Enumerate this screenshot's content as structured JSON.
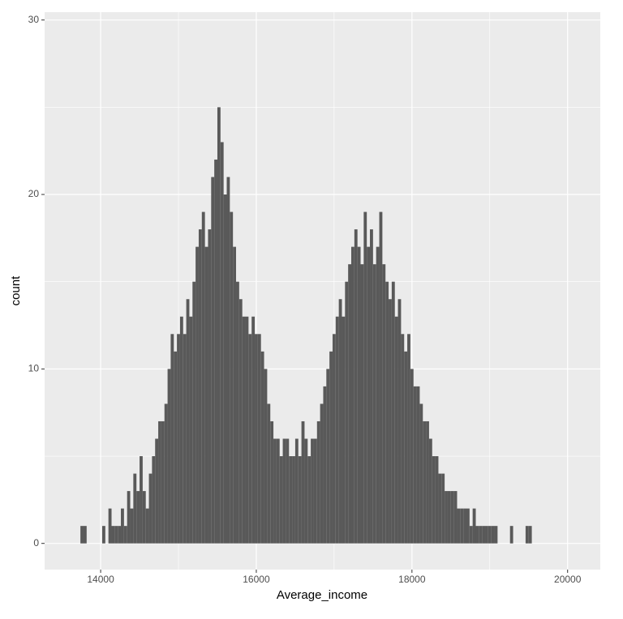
{
  "chart_data": {
    "type": "histogram",
    "x_label": "Average_income",
    "y_label": "count",
    "color": "#595959",
    "background": "#ebebeb",
    "grid": true,
    "bins": [
      13740,
      13780,
      13820,
      13860,
      13900,
      13940,
      13980,
      14020,
      14060,
      14100,
      14140,
      14180,
      14220,
      14260,
      14300,
      14340,
      14380,
      14420,
      14460,
      14500,
      14540,
      14580,
      14620,
      14660,
      14700,
      14740,
      14780,
      14820,
      14860,
      14900,
      14940,
      14980,
      15020,
      15060,
      15100,
      15140,
      15180,
      15220,
      15260,
      15300,
      15340,
      15380,
      15420,
      15460,
      15500,
      15540,
      15580,
      15620,
      15660,
      15700,
      15740,
      15780,
      15820,
      15860,
      15900,
      15940,
      15980,
      16020,
      16060,
      16100,
      16140,
      16180,
      16220,
      16260,
      16300,
      16340,
      16380,
      16420,
      16460,
      16500,
      16540,
      16580,
      16620,
      16660,
      16700,
      16740,
      16780,
      16820,
      16860,
      16900,
      16940,
      16980,
      17020,
      17060,
      17100,
      17140,
      17180,
      17220,
      17260,
      17300,
      17340,
      17380,
      17420,
      17460,
      17500,
      17540,
      17580,
      17620,
      17660,
      17700,
      17740,
      17780,
      17820,
      17860,
      17900,
      17940,
      17980,
      18020,
      18060,
      18100,
      18140,
      18180,
      18220,
      18260,
      18300,
      18340,
      18380,
      18420,
      18460,
      18500,
      18540,
      18580,
      18620,
      18660,
      18700,
      18740,
      18780,
      18820,
      18860,
      18900,
      18940,
      18980,
      19020,
      19060,
      19100,
      19140,
      19180,
      19220,
      19260,
      19300,
      19340,
      19380,
      19420,
      19460,
      19500,
      19540
    ],
    "values": [
      1,
      1,
      0,
      0,
      0,
      0,
      0,
      1,
      0,
      2,
      1,
      1,
      1,
      2,
      1,
      3,
      2,
      4,
      3,
      5,
      3,
      2,
      4,
      5,
      6,
      7,
      7,
      8,
      10,
      12,
      11,
      12,
      13,
      12,
      14,
      13,
      15,
      17,
      18,
      19,
      17,
      18,
      21,
      22,
      25,
      23,
      20,
      21,
      19,
      17,
      15,
      14,
      13,
      13,
      12,
      13,
      12,
      12,
      11,
      10,
      8,
      7,
      6,
      6,
      5,
      6,
      6,
      5,
      5,
      6,
      5,
      7,
      6,
      5,
      6,
      6,
      7,
      8,
      9,
      10,
      11,
      12,
      13,
      14,
      13,
      15,
      16,
      17,
      18,
      17,
      16,
      19,
      17,
      18,
      16,
      17,
      19,
      16,
      15,
      14,
      15,
      13,
      14,
      12,
      11,
      12,
      10,
      9,
      9,
      8,
      7,
      7,
      6,
      5,
      5,
      4,
      4,
      3,
      3,
      3,
      3,
      2,
      2,
      2,
      2,
      1,
      2,
      1,
      1,
      1,
      1,
      1,
      1,
      1,
      0,
      0,
      0,
      0,
      1,
      0,
      0,
      0,
      0,
      1,
      1
    ],
    "xlim": [
      13280,
      20420
    ],
    "xticks": [
      14000,
      16000,
      18000,
      20000
    ],
    "ylim": [
      -1.5,
      30.45
    ],
    "yticks": [
      0,
      10,
      20,
      30
    ]
  }
}
